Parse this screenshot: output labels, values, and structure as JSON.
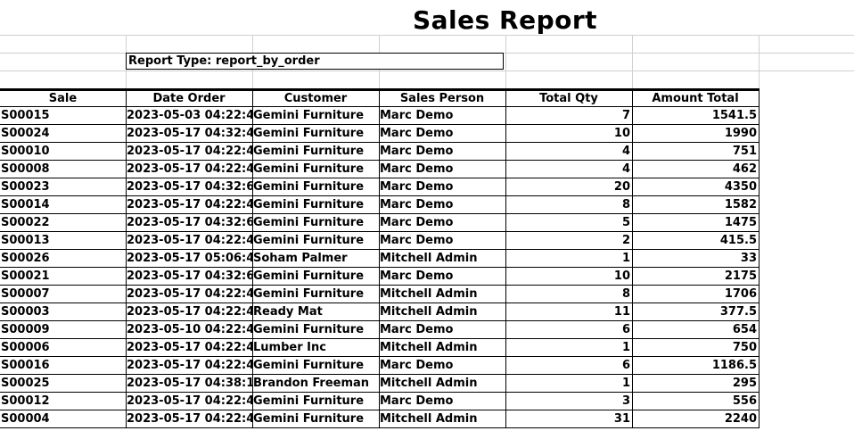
{
  "report": {
    "title": "Sales Report",
    "report_type_label": "Report Type: report_by_order"
  },
  "columns": [
    "Sale",
    "Date Order",
    "Customer",
    "Sales Person",
    "Total Qty",
    "Amount Total"
  ],
  "rows": [
    [
      "S00015",
      "2023-05-03 04:22:4",
      "Gemini Furniture",
      "Marc Demo",
      "7",
      "1541.5"
    ],
    [
      "S00024",
      "2023-05-17 04:32:4",
      "Gemini Furniture",
      "Marc Demo",
      "10",
      "1990"
    ],
    [
      "S00010",
      "2023-05-17 04:22:4",
      "Gemini Furniture",
      "Marc Demo",
      "4",
      "751"
    ],
    [
      "S00008",
      "2023-05-17 04:22:4",
      "Gemini Furniture",
      "Marc Demo",
      "4",
      "462"
    ],
    [
      "S00023",
      "2023-05-17 04:32:6",
      "Gemini Furniture",
      "Marc Demo",
      "20",
      "4350"
    ],
    [
      "S00014",
      "2023-05-17 04:22:4",
      "Gemini Furniture",
      "Marc Demo",
      "8",
      "1582"
    ],
    [
      "S00022",
      "2023-05-17 04:32:6",
      "Gemini Furniture",
      "Marc Demo",
      "5",
      "1475"
    ],
    [
      "S00013",
      "2023-05-17 04:22:4",
      "Gemini Furniture",
      "Marc Demo",
      "2",
      "415.5"
    ],
    [
      "S00026",
      "2023-05-17 05:06:4",
      "Soham Palmer",
      "Mitchell Admin",
      "1",
      "33"
    ],
    [
      "S00021",
      "2023-05-17 04:32:6",
      "Gemini Furniture",
      "Marc Demo",
      "10",
      "2175"
    ],
    [
      "S00007",
      "2023-05-17 04:22:4",
      "Gemini Furniture",
      "Mitchell Admin",
      "8",
      "1706"
    ],
    [
      "S00003",
      "2023-05-17 04:22:4",
      "Ready Mat",
      "Mitchell Admin",
      "11",
      "377.5"
    ],
    [
      "S00009",
      "2023-05-10 04:22:4",
      "Gemini Furniture",
      "Marc Demo",
      "6",
      "654"
    ],
    [
      "S00006",
      "2023-05-17 04:22:4",
      "Lumber Inc",
      "Mitchell Admin",
      "1",
      "750"
    ],
    [
      "S00016",
      "2023-05-17 04:22:4",
      "Gemini Furniture",
      "Marc Demo",
      "6",
      "1186.5"
    ],
    [
      "S00025",
      "2023-05-17 04:38:1",
      "Brandon Freeman",
      "Mitchell Admin",
      "1",
      "295"
    ],
    [
      "S00012",
      "2023-05-17 04:22:4",
      "Gemini Furniture",
      "Marc Demo",
      "3",
      "556"
    ],
    [
      "S00004",
      "2023-05-17 04:22:4",
      "Gemini Furniture",
      "Mitchell Admin",
      "31",
      "2240"
    ]
  ]
}
